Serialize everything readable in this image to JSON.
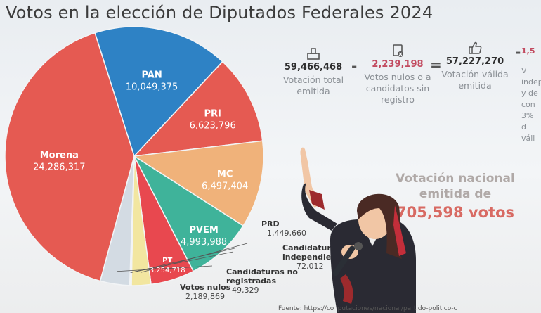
{
  "title": "Votos en la elección de Diputados Federales 2024",
  "metrics": [
    {
      "value": "59,466,468",
      "desc": "Votación total emitida",
      "icon": "ballot-box-icon",
      "color": "#2f2f2f"
    },
    {
      "value": "2,239,198",
      "desc": "Votos nulos o a candidatos sin registro",
      "icon": "null-vote-icon",
      "color": "#c24a5f"
    },
    {
      "value": "57,227,270",
      "desc": "Votación válida emitida",
      "icon": "thumbs-up-icon",
      "color": "#2f2f2f"
    },
    {
      "value": "1,5",
      "desc": "V indep y de con 3% d váli",
      "icon": "",
      "color": "#c24a5f"
    }
  ],
  "operators": [
    "-",
    "=",
    "-"
  ],
  "national": {
    "line1": "Votación nacional",
    "line2": "emitida de",
    "line3": "705,598 votos"
  },
  "source": "Fuente: https://co                                                  iputaciones/nacional/partido-politico-c",
  "chart_data": {
    "type": "pie",
    "title": "Votos en la elección de Diputados Federales 2024",
    "slices": [
      {
        "name": "PAN",
        "label": "10,049,375",
        "value": 10049375,
        "color": "#2e82c5"
      },
      {
        "name": "PRI",
        "label": "6,623,796",
        "value": 6623796,
        "color": "#e55a52"
      },
      {
        "name": "MC",
        "label": "6,497,404",
        "value": 6497404,
        "color": "#f0b27a"
      },
      {
        "name": "PVEM",
        "label": "4,993,988",
        "value": 4993988,
        "color": "#3fb39a"
      },
      {
        "name": "PT",
        "label": "3,254,718",
        "value": 3254718,
        "color": "#e8484f"
      },
      {
        "name": "PRD",
        "label": "1,449,660",
        "value": 1449660,
        "color": "#f2e6a0"
      },
      {
        "name": "Candidaturas independientes",
        "label": "72,012",
        "value": 72012,
        "color": "#b54b6a"
      },
      {
        "name": "Candidaturas no registradas",
        "label": "49,329",
        "value": 49329,
        "color": "#c9a3b8"
      },
      {
        "name": "Votos nulos",
        "label": "2,189,869",
        "value": 2189869,
        "color": "#d3dbe3"
      },
      {
        "name": "Morena",
        "label": "24,286,317",
        "value": 24286317,
        "color": "#e55a52"
      }
    ],
    "legend": "none"
  }
}
